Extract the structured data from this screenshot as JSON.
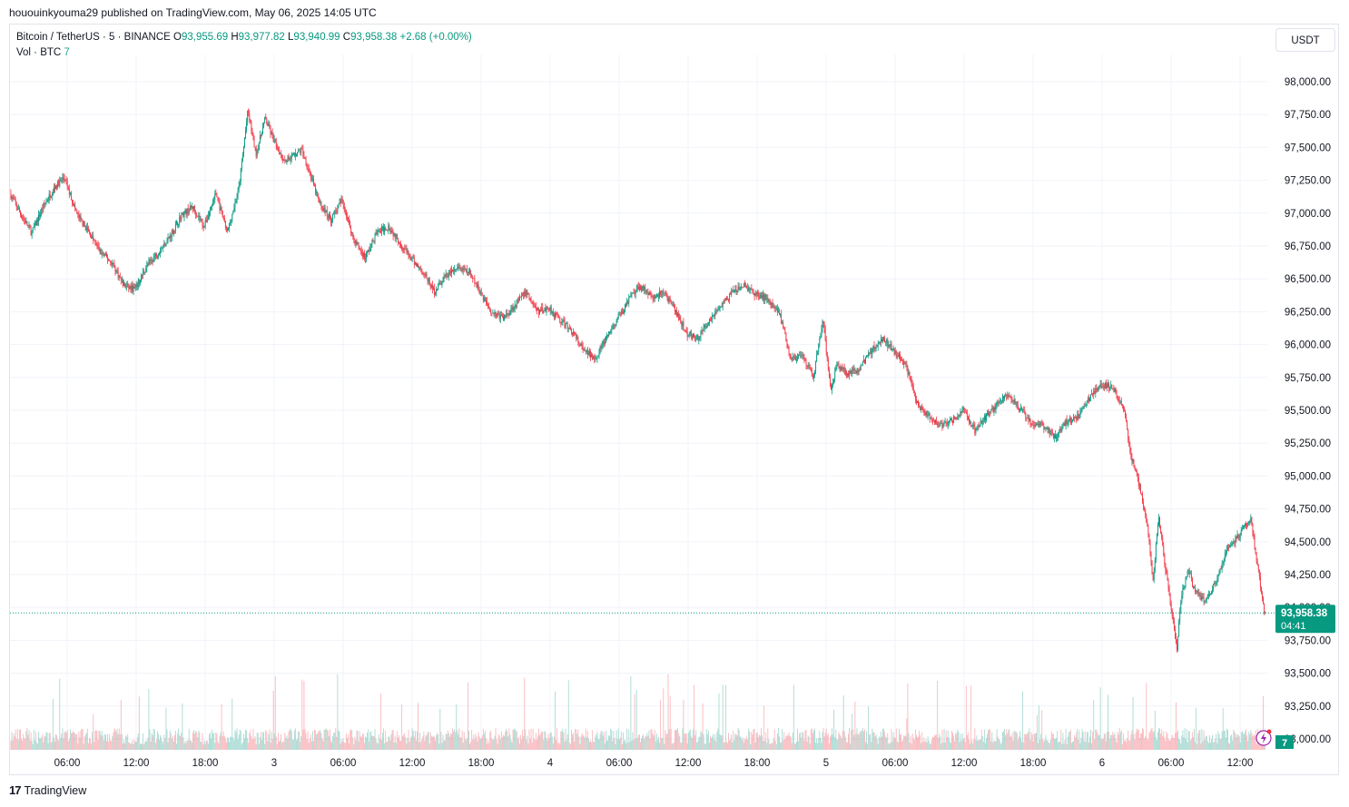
{
  "publication": {
    "author": "hououinkyouma29",
    "text": "hououinkyouma29 published on TradingView.com, May 06, 2025 14:05 UTC"
  },
  "legend": {
    "symbol": "Bitcoin / TetherUS · 5 · BINANCE",
    "o_label": "O",
    "o_value": "93,955.69",
    "h_label": "H",
    "h_value": "93,977.82",
    "l_label": "L",
    "l_value": "93,940.99",
    "c_label": "C",
    "c_value": "93,958.38",
    "change": "+2.68 (+0.00%)",
    "vol_label": "Vol · BTC",
    "vol_value": "7"
  },
  "currency_button": "USDT",
  "footer": {
    "logo": "TradingView"
  },
  "colors": {
    "up": "#089981",
    "down": "#f23645",
    "grid": "#f0f3fa",
    "price_tag": "#089981"
  },
  "chart_data": {
    "type": "candlestick",
    "title": "Bitcoin / TetherUS",
    "timeframe": "5",
    "exchange": "BINANCE",
    "y_ticks": [
      "98,000.00",
      "97,750.00",
      "97,500.00",
      "97,250.00",
      "97,000.00",
      "96,750.00",
      "96,500.00",
      "96,250.00",
      "96,000.00",
      "95,750.00",
      "95,500.00",
      "95,250.00",
      "95,000.00",
      "94,750.00",
      "94,500.00",
      "94,250.00",
      "94,000.00",
      "93,750.00",
      "93,500.00",
      "93,250.00",
      "93,000.00"
    ],
    "y_tick_values": [
      98000,
      97750,
      97500,
      97250,
      97000,
      96750,
      96500,
      96250,
      96000,
      95750,
      95500,
      95250,
      95000,
      94750,
      94500,
      94250,
      94000,
      93750,
      93500,
      93250,
      93000
    ],
    "ylim": [
      92990,
      98170
    ],
    "x_ticks": [
      "06:00",
      "12:00",
      "18:00",
      "3",
      "06:00",
      "12:00",
      "18:00",
      "4",
      "06:00",
      "12:00",
      "18:00",
      "5",
      "06:00",
      "12:00",
      "18:00",
      "6",
      "06:00",
      "12:00"
    ],
    "x_tick_hours": [
      6,
      12,
      18,
      24,
      30,
      36,
      42,
      48,
      54,
      60,
      66,
      72,
      78,
      84,
      90,
      96,
      102,
      108
    ],
    "x_start_hour": 1.1,
    "x_end_hour": 110.2,
    "price_path": [
      [
        1.1,
        97150
      ],
      [
        2,
        97000
      ],
      [
        3,
        96850
      ],
      [
        4,
        97050
      ],
      [
        5,
        97200
      ],
      [
        5.8,
        97270
      ],
      [
        7,
        96980
      ],
      [
        8,
        96850
      ],
      [
        9,
        96700
      ],
      [
        10,
        96620
      ],
      [
        11,
        96450
      ],
      [
        12,
        96420
      ],
      [
        13,
        96600
      ],
      [
        14,
        96700
      ],
      [
        15,
        96820
      ],
      [
        16,
        96980
      ],
      [
        17,
        97050
      ],
      [
        18,
        96900
      ],
      [
        19,
        97150
      ],
      [
        20,
        96850
      ],
      [
        21,
        97180
      ],
      [
        21.8,
        97780
      ],
      [
        22.5,
        97450
      ],
      [
        23.3,
        97720
      ],
      [
        24.2,
        97520
      ],
      [
        25,
        97400
      ],
      [
        26.5,
        97480
      ],
      [
        27.2,
        97300
      ],
      [
        28,
        97080
      ],
      [
        29,
        96950
      ],
      [
        30,
        97100
      ],
      [
        31,
        96800
      ],
      [
        32,
        96660
      ],
      [
        33,
        96850
      ],
      [
        34,
        96900
      ],
      [
        35,
        96780
      ],
      [
        36,
        96650
      ],
      [
        37,
        96560
      ],
      [
        38,
        96400
      ],
      [
        39,
        96520
      ],
      [
        40,
        96580
      ],
      [
        41,
        96550
      ],
      [
        42,
        96400
      ],
      [
        43,
        96250
      ],
      [
        44,
        96200
      ],
      [
        45,
        96300
      ],
      [
        46,
        96400
      ],
      [
        47,
        96250
      ],
      [
        48,
        96280
      ],
      [
        49,
        96180
      ],
      [
        50,
        96100
      ],
      [
        51,
        95950
      ],
      [
        52,
        95900
      ],
      [
        53,
        96050
      ],
      [
        54,
        96200
      ],
      [
        55,
        96350
      ],
      [
        56,
        96450
      ],
      [
        57,
        96350
      ],
      [
        58,
        96400
      ],
      [
        59,
        96250
      ],
      [
        60,
        96080
      ],
      [
        61,
        96050
      ],
      [
        62,
        96200
      ],
      [
        63,
        96300
      ],
      [
        64,
        96400
      ],
      [
        65,
        96450
      ],
      [
        66,
        96380
      ],
      [
        67,
        96350
      ],
      [
        68,
        96250
      ],
      [
        69,
        95900
      ],
      [
        70,
        95900
      ],
      [
        71,
        95750
      ],
      [
        71.8,
        96200
      ],
      [
        72.5,
        95650
      ],
      [
        73,
        95850
      ],
      [
        74,
        95780
      ],
      [
        75,
        95820
      ],
      [
        76,
        95950
      ],
      [
        77,
        96050
      ],
      [
        78,
        95950
      ],
      [
        79,
        95850
      ],
      [
        80,
        95550
      ],
      [
        81,
        95450
      ],
      [
        82,
        95380
      ],
      [
        83,
        95420
      ],
      [
        84,
        95500
      ],
      [
        85,
        95350
      ],
      [
        86,
        95450
      ],
      [
        87,
        95550
      ],
      [
        88,
        95620
      ],
      [
        89,
        95500
      ],
      [
        90,
        95400
      ],
      [
        91,
        95380
      ],
      [
        92,
        95300
      ],
      [
        93,
        95420
      ],
      [
        94,
        95450
      ],
      [
        95,
        95600
      ],
      [
        96,
        95700
      ],
      [
        97,
        95680
      ],
      [
        98,
        95500
      ],
      [
        98.6,
        95150
      ],
      [
        99,
        95050
      ],
      [
        100,
        94650
      ],
      [
        100.5,
        94200
      ],
      [
        101,
        94700
      ],
      [
        101.6,
        94300
      ],
      [
        102,
        94050
      ],
      [
        102.6,
        93700
      ],
      [
        103,
        94100
      ],
      [
        103.6,
        94300
      ],
      [
        104,
        94150
      ],
      [
        105,
        94050
      ],
      [
        106,
        94200
      ],
      [
        107,
        94450
      ],
      [
        108,
        94550
      ],
      [
        109,
        94680
      ],
      [
        110.2,
        93958
      ]
    ],
    "last_price": "93,958.38",
    "countdown": "04:41",
    "volume_last": "7"
  }
}
